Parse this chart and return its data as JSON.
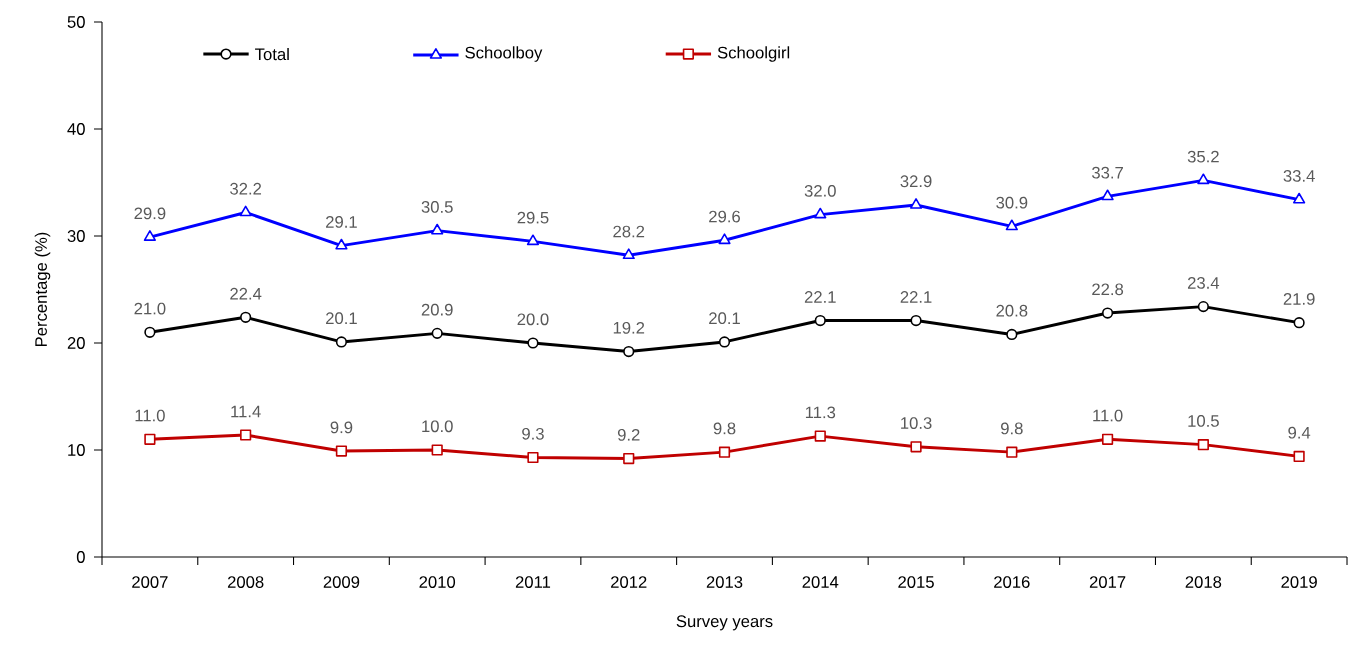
{
  "chart_data": {
    "type": "line",
    "xlabel": "Survey years",
    "ylabel": "Percentage (%)",
    "categories": [
      "2007",
      "2008",
      "2009",
      "2010",
      "2011",
      "2012",
      "2013",
      "2014",
      "2015",
      "2016",
      "2017",
      "2018",
      "2019"
    ],
    "series": [
      {
        "name": "Total",
        "color": "#000000",
        "marker": "circle",
        "values": [
          21.0,
          22.4,
          20.1,
          20.9,
          20.0,
          19.2,
          20.1,
          22.1,
          22.1,
          20.8,
          22.8,
          23.4,
          21.9
        ],
        "value_labels": [
          "21.0",
          "22.4",
          "20.1",
          "20.9",
          "20.0",
          "19.2",
          "20.1",
          "22.1",
          "22.1",
          "20.8",
          "22.8",
          "23.4",
          "21.9"
        ]
      },
      {
        "name": "Schoolboy",
        "color": "#0000ff",
        "marker": "triangle",
        "values": [
          29.9,
          32.2,
          29.1,
          30.5,
          29.5,
          28.2,
          29.6,
          32.0,
          32.9,
          30.9,
          33.7,
          35.2,
          33.4
        ],
        "value_labels": [
          "29.9",
          "32.2",
          "29.1",
          "30.5",
          "29.5",
          "28.2",
          "29.6",
          "32.0",
          "32.9",
          "30.9",
          "33.7",
          "35.2",
          "33.4"
        ]
      },
      {
        "name": "Schoolgirl",
        "color": "#c00000",
        "marker": "square",
        "values": [
          11.0,
          11.4,
          9.9,
          10.0,
          9.3,
          9.2,
          9.8,
          11.3,
          10.3,
          9.8,
          11.0,
          10.5,
          9.4
        ],
        "value_labels": [
          "11.0",
          "11.4",
          "9.9",
          "10.0",
          "9.3",
          "9.2",
          "9.8",
          "11.3",
          "10.3",
          "9.8",
          "11.0",
          "10.5",
          "9.4"
        ]
      }
    ],
    "ylim": [
      0,
      50
    ],
    "yticks": [
      0,
      10,
      20,
      30,
      40,
      50
    ],
    "grid": false,
    "legend": "top left",
    "line_style": "solid"
  }
}
